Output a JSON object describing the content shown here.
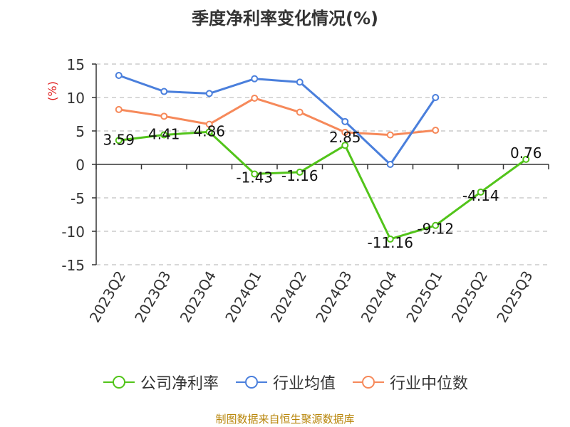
{
  "chart_data": {
    "type": "line",
    "title": "季度净利率变化情况(%)",
    "ylabel": "(%)",
    "xlabel": "",
    "categories": [
      "2023Q2",
      "2023Q3",
      "2023Q4",
      "2024Q1",
      "2024Q2",
      "2024Q3",
      "2024Q4",
      "2025Q1",
      "2025Q2",
      "2025Q3"
    ],
    "ylim": [
      -15,
      15
    ],
    "yticks": [
      "15",
      "10",
      "5",
      "0",
      "-5",
      "-10",
      "-15"
    ],
    "grid": true,
    "legend_position": "bottom",
    "series": [
      {
        "name": "公司净利率",
        "color": "#52c41a",
        "values": [
          3.59,
          4.41,
          4.86,
          -1.43,
          -1.16,
          2.85,
          -11.16,
          -9.12,
          -4.14,
          0.76
        ],
        "labels": [
          "3.59",
          "4.41",
          "4.86",
          "-1.43",
          "-1.16",
          "2.85",
          "-11.16",
          "-9.12",
          "-4.14",
          "0.76"
        ]
      },
      {
        "name": "行业均值",
        "color": "#4a7fdc",
        "values": [
          13.3,
          10.9,
          10.6,
          12.8,
          12.3,
          6.4,
          0.0,
          10.0,
          null,
          null
        ]
      },
      {
        "name": "行业中位数",
        "color": "#f6895a",
        "values": [
          8.2,
          7.2,
          6.0,
          9.9,
          7.8,
          4.8,
          4.4,
          5.1,
          null,
          null
        ]
      }
    ]
  },
  "source": "制图数据来自恒生聚源数据库"
}
